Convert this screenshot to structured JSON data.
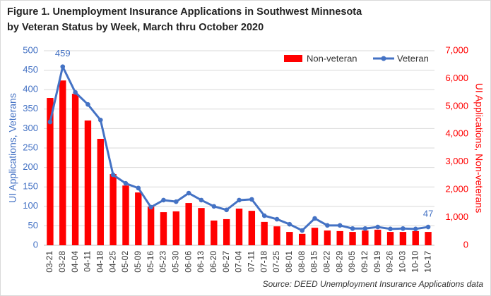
{
  "chart_data": {
    "type": "bar-line",
    "title": [
      "Figure 1. Unemployment Insurance Applications in Southwest Minnesota",
      "by Veteran Status by Week, March thru October 2020"
    ],
    "y_label": "UI Applications, Veterans",
    "y2_label": "UI Applications, Non-veterans",
    "source": "Source: DEED Unemployment Insurance Applications data",
    "categories": [
      "03-21",
      "03-28",
      "04-04",
      "04-11",
      "04-18",
      "04-25",
      "05-02",
      "05-09",
      "05-16",
      "05-23",
      "05-30",
      "06-06",
      "06-13",
      "06-20",
      "06-27",
      "07-04",
      "07-11",
      "07-18",
      "07-25",
      "08-01",
      "08-08",
      "08-15",
      "08-22",
      "08-29",
      "09-05",
      "09-12",
      "09-19",
      "09-26",
      "10-03",
      "10-10",
      "10-17"
    ],
    "series": [
      {
        "name": "Non-veteran",
        "type": "bar",
        "axis": "y2",
        "color": "#ff0000",
        "values": [
          5300,
          5930,
          5450,
          4490,
          3830,
          2560,
          2150,
          1900,
          1390,
          1190,
          1220,
          1520,
          1340,
          890,
          940,
          1320,
          1240,
          840,
          680,
          480,
          410,
          630,
          530,
          510,
          480,
          530,
          560,
          480,
          480,
          510,
          480
        ]
      },
      {
        "name": "Veteran",
        "type": "line",
        "axis": "y",
        "color": "#4472c4",
        "values": [
          317,
          459,
          393,
          362,
          322,
          181,
          159,
          147,
          98,
          116,
          112,
          134,
          116,
          100,
          91,
          116,
          118,
          76,
          67,
          54,
          38,
          69,
          51,
          51,
          43,
          43,
          47,
          42,
          43,
          42,
          47
        ]
      }
    ],
    "ylim": [
      0,
      500
    ],
    "yticks": [
      0,
      50,
      100,
      150,
      200,
      250,
      300,
      350,
      400,
      450,
      500
    ],
    "y2lim": [
      0,
      7000
    ],
    "y2ticks": [
      0,
      {
        "value": 1000,
        "label": "1,000"
      },
      {
        "value": 2000,
        "label": "2,000"
      },
      {
        "value": 3000,
        "label": "3,000"
      },
      {
        "value": 4000,
        "label": "4,000"
      },
      {
        "value": 5000,
        "label": "5,000"
      },
      {
        "value": 6000,
        "label": "6,000"
      },
      {
        "value": 7000,
        "label": "7,000"
      }
    ],
    "grid": true,
    "legend": "top-right"
  }
}
